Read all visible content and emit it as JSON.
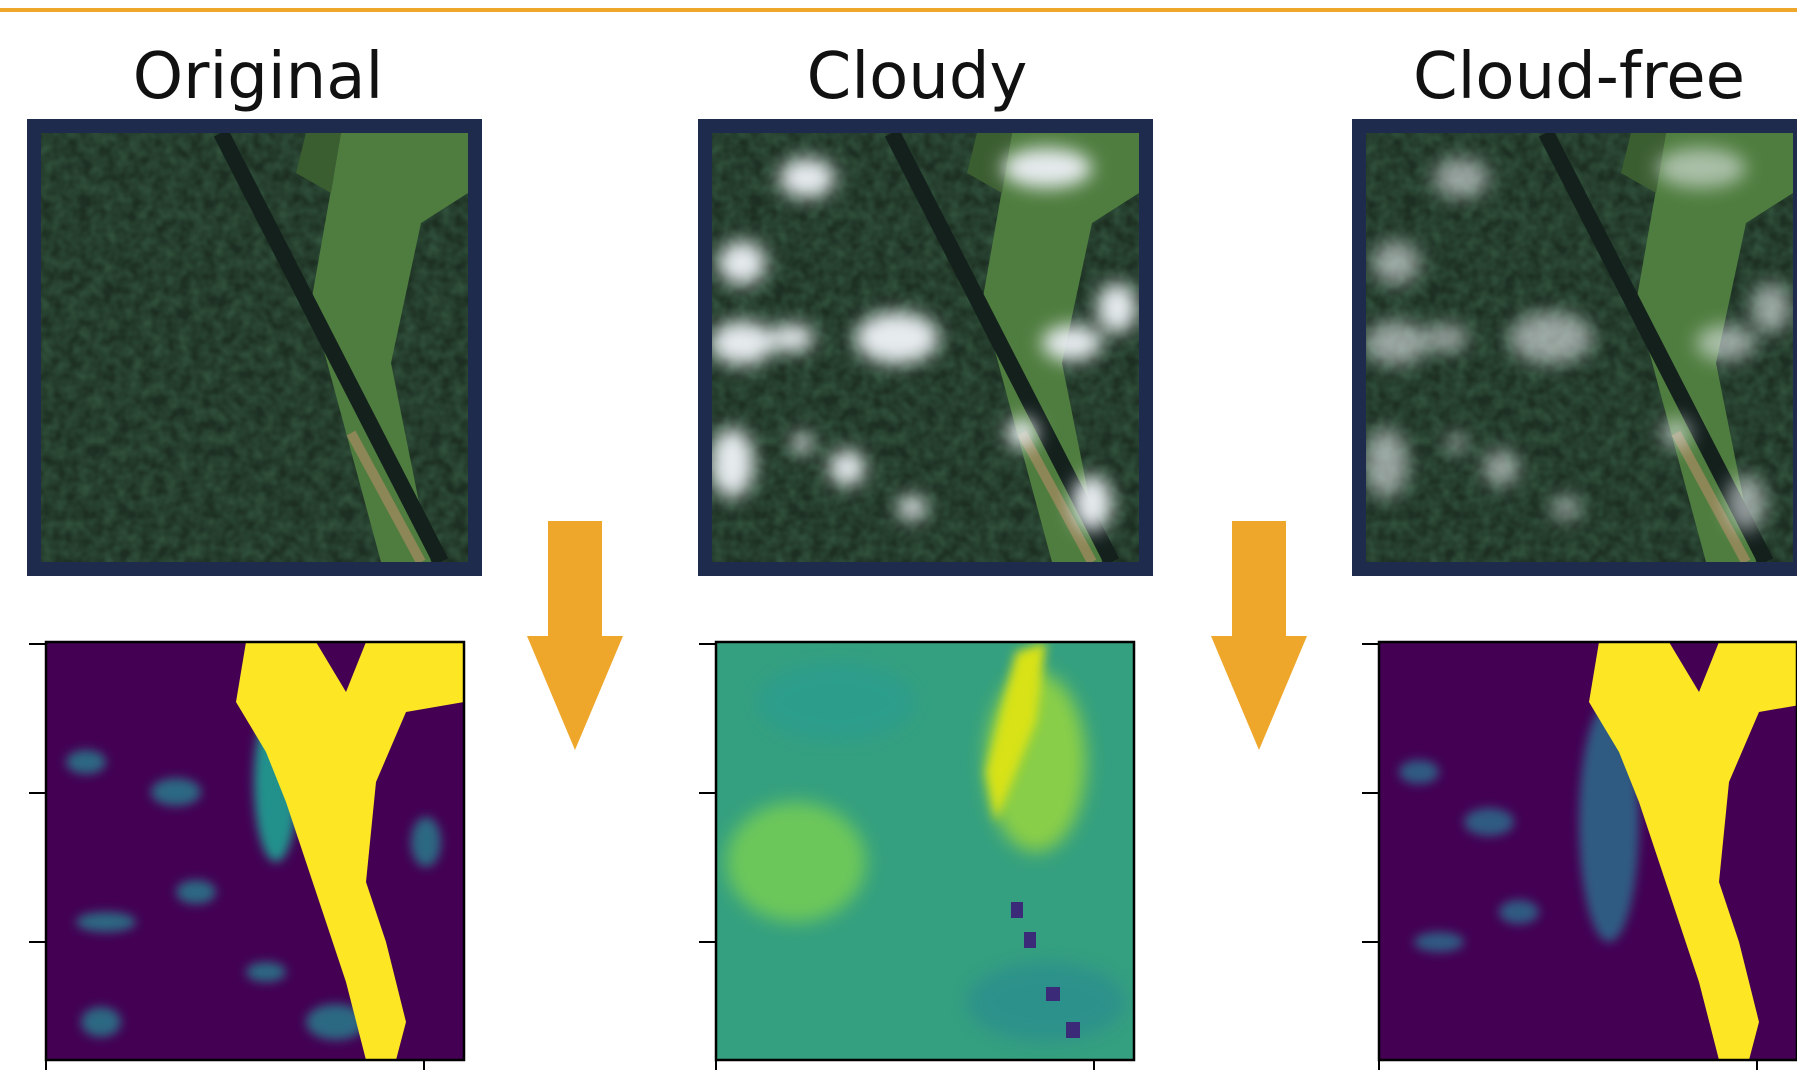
{
  "panels": [
    {
      "title": "Original"
    },
    {
      "title": "Cloudy"
    },
    {
      "title": "Cloud-free"
    }
  ]
}
